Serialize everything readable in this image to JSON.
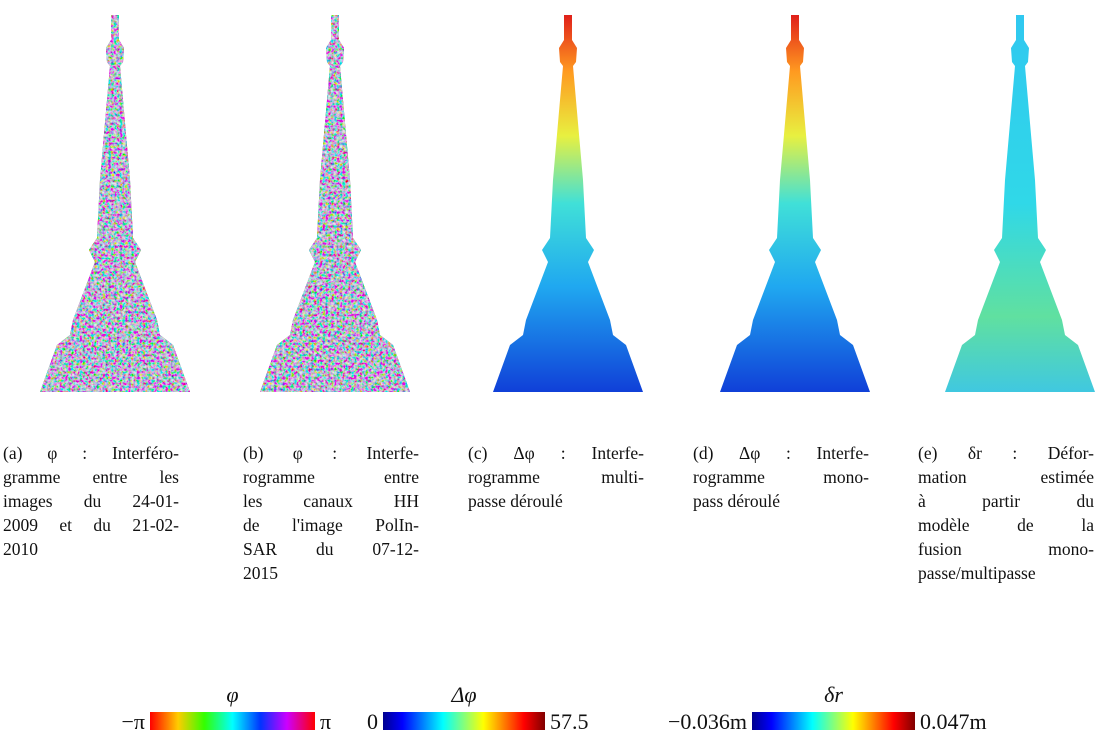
{
  "panels": [
    {
      "lines": [
        "(a) φ : Interféro-",
        "gramme entre les",
        "images du 24-01-",
        "2009 et du 21-02-",
        "2010"
      ]
    },
    {
      "lines": [
        "(b) φ : Interfe-",
        "rogramme entre",
        "les canaux HH",
        "de l'image PolIn-",
        "SAR du 07-12-",
        "2015"
      ]
    },
    {
      "lines": [
        "(c) Δφ : Interfe-",
        "rogramme multi-",
        "passe déroulé"
      ]
    },
    {
      "lines": [
        "(d) Δφ : Interfe-",
        "rogramme mono-",
        "pass déroulé"
      ]
    },
    {
      "lines": [
        "(e) δr : Défor-",
        "mation estimée",
        "à partir du",
        "modèle de la",
        "fusion mono-",
        "passe/multipasse"
      ]
    }
  ],
  "colorbars": [
    {
      "symbol": "φ",
      "min": "−π",
      "max": "π"
    },
    {
      "symbol": "Δφ",
      "min": "0",
      "max": "57.5"
    },
    {
      "symbol": "δr",
      "min": "−0.036m",
      "max": "0.047m"
    }
  ]
}
